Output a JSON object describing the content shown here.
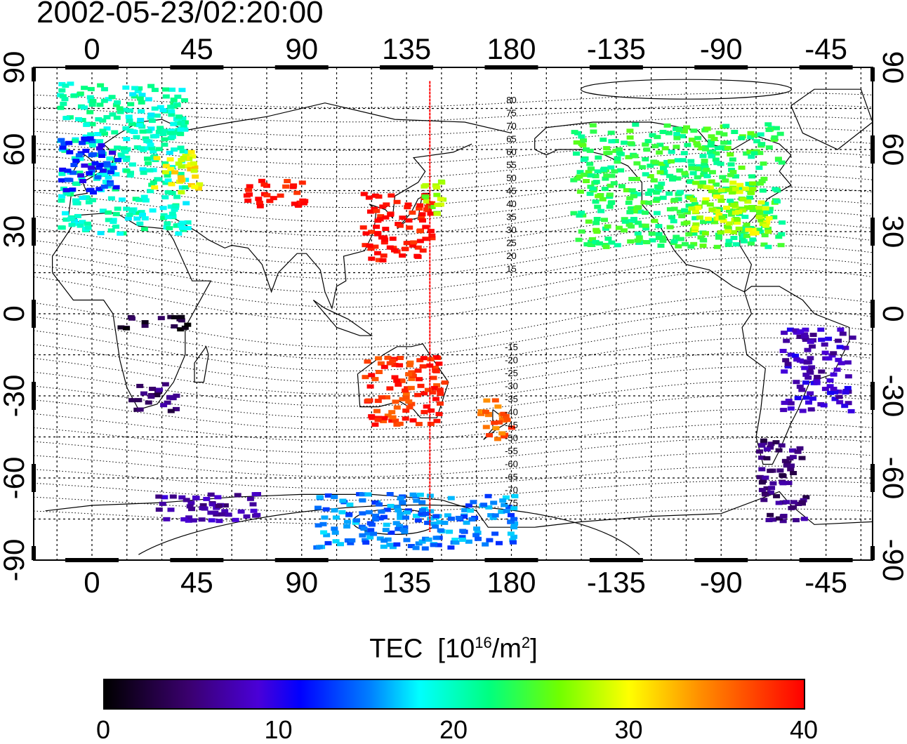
{
  "title": "2002-05-23/02:20:00",
  "map": {
    "lon_ticks": [
      "0",
      "45",
      "90",
      "135",
      "180",
      "-135",
      "-90",
      "-45"
    ],
    "lat_ticks": [
      "90",
      "60",
      "30",
      "0",
      "-30",
      "-60",
      "-90"
    ],
    "meridian_marker_lon": 145,
    "contour_labels": [
      "80",
      "75",
      "70",
      "65",
      "60",
      "55",
      "50",
      "45",
      "40",
      "35",
      "30",
      "25",
      "20",
      "15",
      "-15",
      "-20",
      "-25",
      "-30",
      "-35",
      "-40",
      "-45",
      "-50",
      "-55",
      "-60",
      "-65",
      "-70",
      "-75"
    ]
  },
  "colorbar": {
    "title": "TEC",
    "unit_prefix": "[10",
    "unit_exp": "16",
    "unit_mid": "/m",
    "unit_exp2": "2",
    "unit_suffix": "]",
    "min": 0,
    "max": 40,
    "ticks": [
      "0",
      "10",
      "20",
      "30",
      "40"
    ],
    "stops": [
      "#000000",
      "#3a006e",
      "#4a00d8",
      "#0000ff",
      "#0080ff",
      "#00ffff",
      "#00ff80",
      "#70ff00",
      "#ffff00",
      "#ff9000",
      "#ff0000"
    ]
  },
  "chart_data": {
    "type": "heatmap",
    "title": "2002-05-23/02:20:00",
    "xlabel": "",
    "ylabel": "",
    "xlim": [
      -25,
      335
    ],
    "ylim": [
      -90,
      90
    ],
    "value_label": "TEC [10^16/m^2]",
    "value_range": [
      0,
      40
    ],
    "regions": [
      {
        "lon": [
          -15,
          40
        ],
        "lat": [
          30,
          85
        ],
        "tec": 20
      },
      {
        "lon": [
          -15,
          10
        ],
        "lat": [
          45,
          65
        ],
        "tec": 12
      },
      {
        "lon": [
          25,
          45
        ],
        "lat": [
          45,
          60
        ],
        "tec": 30
      },
      {
        "lon": [
          65,
          90
        ],
        "lat": [
          40,
          50
        ],
        "tec": 40
      },
      {
        "lon": [
          115,
          145
        ],
        "lat": [
          20,
          45
        ],
        "tec": 40
      },
      {
        "lon": [
          140,
          150
        ],
        "lat": [
          35,
          50
        ],
        "tec": 27
      },
      {
        "lon": [
          205,
          295
        ],
        "lat": [
          25,
          70
        ],
        "tec": 23
      },
      {
        "lon": [
          255,
          290
        ],
        "lat": [
          30,
          50
        ],
        "tec": 28
      },
      {
        "lon": [
          10,
          40
        ],
        "lat": [
          -5,
          0
        ],
        "tec": 2
      },
      {
        "lon": [
          15,
          35
        ],
        "lat": [
          -35,
          -25
        ],
        "tec": 5
      },
      {
        "lon": [
          115,
          150
        ],
        "lat": [
          -40,
          -15
        ],
        "tec": 38
      },
      {
        "lon": [
          165,
          180
        ],
        "lat": [
          -45,
          -30
        ],
        "tec": 36
      },
      {
        "lon": [
          295,
          325
        ],
        "lat": [
          -35,
          -5
        ],
        "tec": 8
      },
      {
        "lon": [
          285,
          305
        ],
        "lat": [
          -75,
          -45
        ],
        "tec": 5
      },
      {
        "lon": [
          25,
          70
        ],
        "lat": [
          -75,
          -65
        ],
        "tec": 7
      },
      {
        "lon": [
          95,
          180
        ],
        "lat": [
          -85,
          -65
        ],
        "tec": 15
      }
    ]
  }
}
